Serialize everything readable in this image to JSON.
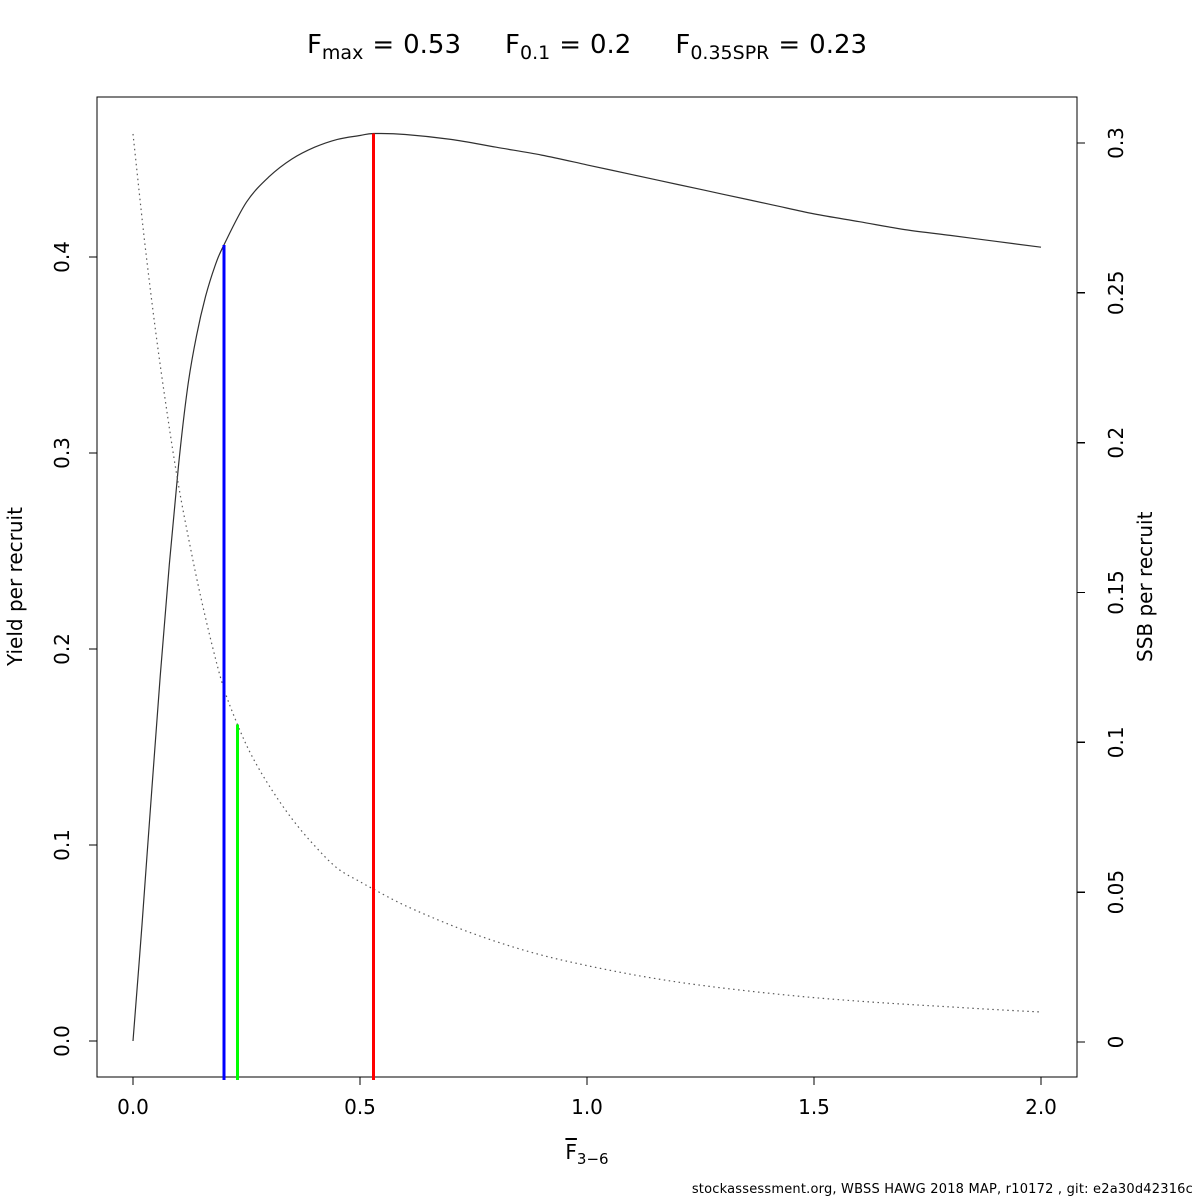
{
  "title": {
    "equals": "=",
    "stats": [
      {
        "base": "F",
        "sub": "max",
        "value": "0.53"
      },
      {
        "base": "F",
        "sub": "0.1",
        "value": "0.2"
      },
      {
        "base": "F",
        "sub": "0.35SPR",
        "value": "0.23"
      }
    ]
  },
  "axes": {
    "x": {
      "label_base": "F",
      "label_sub": "3−6",
      "ticks": [
        {
          "v": 0.0,
          "label": "0.0"
        },
        {
          "v": 0.5,
          "label": "0.5"
        },
        {
          "v": 1.0,
          "label": "1.0"
        },
        {
          "v": 1.5,
          "label": "1.5"
        },
        {
          "v": 2.0,
          "label": "2.0"
        }
      ]
    },
    "y_left": {
      "label": "Yield per recruit",
      "ticks": [
        {
          "v": 0.0,
          "label": "0.0"
        },
        {
          "v": 0.1,
          "label": "0.1"
        },
        {
          "v": 0.2,
          "label": "0.2"
        },
        {
          "v": 0.3,
          "label": "0.3"
        },
        {
          "v": 0.4,
          "label": "0.4"
        }
      ]
    },
    "y_right": {
      "label": "SSB per recruit",
      "ticks": [
        {
          "v": 0.0,
          "label": "0"
        },
        {
          "v": 0.05,
          "label": "0.05"
        },
        {
          "v": 0.1,
          "label": "0.1"
        },
        {
          "v": 0.15,
          "label": "0.15"
        },
        {
          "v": 0.2,
          "label": "0.2"
        },
        {
          "v": 0.25,
          "label": "0.25"
        },
        {
          "v": 0.3,
          "label": "0.3"
        }
      ]
    }
  },
  "chart_data": {
    "type": "line",
    "title": "F_max = 0.53   F_0.1 = 0.2   F_0.35SPR = 0.23",
    "xlabel": "Fbar_3−6",
    "ylabel_left": "Yield per recruit",
    "ylabel_right": "SSB per recruit",
    "xlim": [
      0,
      2
    ],
    "ylim_left": [
      0,
      0.48
    ],
    "ylim_right": [
      0,
      0.31
    ],
    "grid": false,
    "legend": "none",
    "reference_points": {
      "F_max": 0.53,
      "F_0.1": 0.2,
      "F_0.35SPR": 0.23
    },
    "series": [
      {
        "name": "yield-per-recruit",
        "axis": "left",
        "style": "solid",
        "color": "#303030",
        "width": 1.2,
        "x": [
          0,
          0.02,
          0.04,
          0.06,
          0.08,
          0.1,
          0.12,
          0.14,
          0.16,
          0.18,
          0.2,
          0.25,
          0.3,
          0.35,
          0.4,
          0.45,
          0.5,
          0.53,
          0.6,
          0.7,
          0.8,
          0.9,
          1.0,
          1.1,
          1.2,
          1.3,
          1.4,
          1.5,
          1.6,
          1.7,
          1.8,
          1.9,
          2.0
        ],
        "y": [
          0,
          0.06,
          0.124,
          0.186,
          0.243,
          0.293,
          0.333,
          0.36,
          0.38,
          0.395,
          0.406,
          0.428,
          0.441,
          0.45,
          0.456,
          0.46,
          0.462,
          0.463,
          0.4625,
          0.46,
          0.456,
          0.452,
          0.447,
          0.442,
          0.437,
          0.432,
          0.427,
          0.422,
          0.418,
          0.414,
          0.411,
          0.408,
          0.405
        ]
      },
      {
        "name": "ssb-per-recruit",
        "axis": "right",
        "style": "dotted",
        "color": "#5a5a5a",
        "width": 1.2,
        "x": [
          0,
          0.025,
          0.05,
          0.075,
          0.1,
          0.125,
          0.15,
          0.175,
          0.2,
          0.23,
          0.26,
          0.3,
          0.35,
          0.4,
          0.45,
          0.5,
          0.53,
          0.6,
          0.7,
          0.8,
          0.9,
          1.0,
          1.1,
          1.2,
          1.3,
          1.4,
          1.5,
          1.6,
          1.7,
          1.8,
          1.9,
          2.0
        ],
        "y": [
          0.303,
          0.268,
          0.237,
          0.21,
          0.186,
          0.166,
          0.148,
          0.132,
          0.118,
          0.106,
          0.096,
          0.0855,
          0.0745,
          0.0655,
          0.058,
          0.0535,
          0.051,
          0.0455,
          0.039,
          0.0335,
          0.029,
          0.0255,
          0.0225,
          0.02,
          0.018,
          0.0163,
          0.0148,
          0.0136,
          0.0126,
          0.0117,
          0.0108,
          0.01
        ]
      }
    ],
    "reference_lines": [
      {
        "name": "F-0-1-line",
        "x": 0.2,
        "color": "#0000FF",
        "top_axis": "left",
        "top_value": 0.406
      },
      {
        "name": "F-0-35SPR-line",
        "x": 0.23,
        "color": "#00FF00",
        "top_axis": "right",
        "top_value": 0.106
      },
      {
        "name": "F-max-line",
        "x": 0.53,
        "color": "#FF0000",
        "top_axis": "left",
        "top_value": 0.463
      }
    ]
  },
  "footer": {
    "text": "stockassessment.org, WBSS HAWG 2018 MAP, r10172 , git: e2a30d42316c"
  }
}
